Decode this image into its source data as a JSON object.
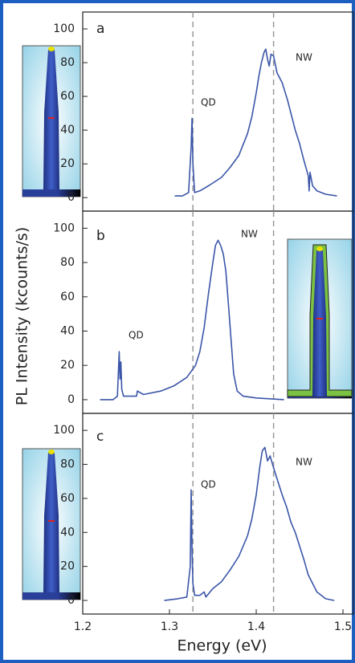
{
  "chart_data": [
    {
      "type": "line",
      "panel_label": "a",
      "annotations": [
        "QD",
        "NW"
      ],
      "xlim": [
        1.2,
        1.512
      ],
      "ylim": [
        -8,
        110
      ],
      "yticks": [
        0,
        20,
        40,
        60,
        80,
        100
      ],
      "vlines": [
        1.327,
        1.42
      ],
      "x": [
        1.306,
        1.315,
        1.322,
        1.325,
        1.326,
        1.327,
        1.329,
        1.335,
        1.345,
        1.36,
        1.37,
        1.38,
        1.39,
        1.395,
        1.4,
        1.403,
        1.406,
        1.409,
        1.411,
        1.413,
        1.415,
        1.417,
        1.42,
        1.424,
        1.43,
        1.436,
        1.44,
        1.445,
        1.45,
        1.455,
        1.46,
        1.461,
        1.462,
        1.465,
        1.47,
        1.48,
        1.493
      ],
      "series": [
        {
          "color": "#3a55a8",
          "values": [
            1,
            1,
            3,
            30,
            47,
            20,
            3,
            4,
            7,
            12,
            18,
            25,
            38,
            48,
            62,
            72,
            80,
            86,
            88,
            82,
            78,
            85,
            84,
            74,
            68,
            58,
            50,
            40,
            32,
            22,
            13,
            4,
            15,
            7,
            4,
            2,
            1
          ]
        }
      ]
    },
    {
      "type": "line",
      "panel_label": "b",
      "annotations": [
        "QD",
        "NW"
      ],
      "ylabel": "PL Intensity (kcounts/s)",
      "xlim": [
        1.2,
        1.512
      ],
      "ylim": [
        -8,
        110
      ],
      "yticks": [
        0,
        20,
        40,
        60,
        80,
        100
      ],
      "vlines": [
        1.327,
        1.42
      ],
      "x": [
        1.22,
        1.235,
        1.24,
        1.242,
        1.243,
        1.244,
        1.245,
        1.247,
        1.255,
        1.262,
        1.263,
        1.27,
        1.29,
        1.305,
        1.32,
        1.33,
        1.335,
        1.34,
        1.345,
        1.35,
        1.353,
        1.356,
        1.359,
        1.362,
        1.365,
        1.368,
        1.371,
        1.374,
        1.378,
        1.385,
        1.4,
        1.432
      ],
      "series": [
        {
          "color": "#3a55a8",
          "values": [
            0,
            0,
            2,
            28,
            12,
            22,
            6,
            2,
            2,
            2,
            5,
            3,
            5,
            8,
            13,
            20,
            28,
            42,
            62,
            80,
            90,
            93,
            90,
            85,
            75,
            55,
            35,
            15,
            5,
            2,
            1,
            0
          ]
        }
      ]
    },
    {
      "type": "line",
      "panel_label": "c",
      "annotations": [
        "QD",
        "NW"
      ],
      "xlabel": "Energy (eV)",
      "xlim": [
        1.2,
        1.512
      ],
      "ylim": [
        -8,
        110
      ],
      "yticks": [
        0,
        20,
        40,
        60,
        80,
        100
      ],
      "xticks": [
        1.2,
        1.3,
        1.4,
        1.5
      ],
      "vlines": [
        1.327,
        1.42
      ],
      "x": [
        1.294,
        1.31,
        1.32,
        1.324,
        1.325,
        1.326,
        1.327,
        1.329,
        1.335,
        1.34,
        1.342,
        1.35,
        1.36,
        1.37,
        1.38,
        1.39,
        1.395,
        1.4,
        1.404,
        1.407,
        1.41,
        1.413,
        1.416,
        1.42,
        1.425,
        1.43,
        1.435,
        1.44,
        1.445,
        1.45,
        1.455,
        1.46,
        1.465,
        1.47,
        1.48,
        1.49
      ],
      "series": [
        {
          "color": "#3a55a8",
          "values": [
            0,
            1,
            2,
            20,
            65,
            30,
            10,
            3,
            3,
            5,
            2,
            7,
            11,
            18,
            26,
            38,
            48,
            62,
            78,
            88,
            90,
            82,
            85,
            78,
            70,
            62,
            55,
            46,
            40,
            32,
            24,
            15,
            10,
            5,
            1,
            0
          ]
        }
      ]
    }
  ]
}
